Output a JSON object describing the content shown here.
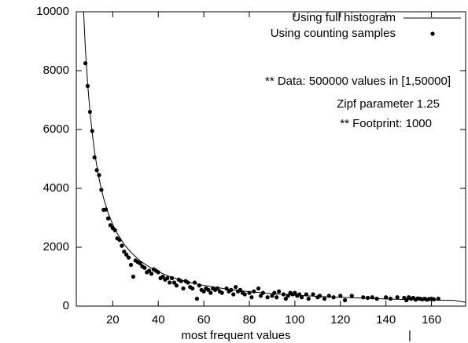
{
  "chart_data": {
    "type": "line",
    "xlabel": "most frequent values",
    "annotations": [
      "** Data: 500000 values in [1,50000]",
      "Zipf parameter 1.25",
      "** Footprint: 1000",
      "|"
    ],
    "xlim": [
      4,
      175
    ],
    "xticks": [
      20,
      40,
      60,
      80,
      100,
      120,
      140,
      160
    ],
    "ylim": [
      0,
      10000
    ],
    "yticks": [
      0,
      2000,
      4000,
      6000,
      8000,
      10000
    ],
    "legend": "top-right",
    "series": [
      {
        "name": "Using full histogram",
        "type": "line",
        "color": "#000000",
        "x": [
          7,
          8,
          9,
          10,
          11,
          12,
          13,
          14,
          15,
          16,
          18,
          20,
          22,
          25,
          28,
          32,
          36,
          40,
          45,
          50,
          55,
          60,
          70,
          80,
          90,
          100,
          110,
          120,
          130,
          140,
          150,
          160,
          165,
          170,
          175
        ],
        "values": [
          10305,
          8726,
          7528,
          6601,
          5860,
          5256,
          4758,
          4337,
          3976,
          3668,
          3164,
          2775,
          2466,
          2100,
          1823,
          1542,
          1331,
          1167,
          1006,
          882,
          784,
          703,
          580,
          490,
          424,
          371,
          330,
          296,
          268,
          244,
          224,
          207,
          199,
          192,
          130
        ]
      },
      {
        "name": "Using counting samples",
        "type": "points",
        "color": "#000000",
        "x": [
          8,
          9,
          10,
          11,
          12,
          13,
          14,
          15,
          16,
          17,
          18,
          19,
          20,
          21,
          22,
          23,
          24,
          25,
          26,
          27,
          28,
          29,
          30,
          31,
          32,
          33,
          34,
          35,
          36,
          37,
          38,
          39,
          40,
          41,
          42,
          43,
          44,
          45,
          46,
          47,
          48,
          49,
          50,
          51,
          52,
          53,
          54,
          55,
          56,
          57,
          58,
          59,
          60,
          61,
          62,
          63,
          64,
          65,
          66,
          67,
          68,
          70,
          71,
          72,
          73,
          74,
          75,
          76,
          77,
          78,
          80,
          81,
          82,
          84,
          85,
          86,
          88,
          90,
          91,
          92,
          93,
          95,
          96,
          97,
          98,
          99,
          100,
          101,
          102,
          103,
          105,
          106,
          108,
          110,
          111,
          113,
          115,
          117,
          120,
          122,
          125,
          130,
          132,
          134,
          136,
          140,
          142,
          145,
          148,
          149,
          150,
          151,
          152,
          153,
          154,
          155,
          156,
          157,
          158,
          159,
          160,
          161,
          163
        ],
        "values": [
          8250,
          7480,
          6600,
          5950,
          5050,
          4620,
          4450,
          3950,
          3270,
          3280,
          2980,
          2750,
          2650,
          2580,
          2300,
          2250,
          2050,
          1850,
          1750,
          1650,
          1400,
          1000,
          1550,
          1500,
          1450,
          1350,
          1300,
          1150,
          1200,
          1100,
          1250,
          1200,
          1150,
          950,
          1000,
          900,
          950,
          800,
          950,
          800,
          700,
          900,
          850,
          600,
          850,
          800,
          650,
          600,
          800,
          250,
          700,
          550,
          500,
          600,
          550,
          450,
          600,
          550,
          600,
          500,
          450,
          600,
          500,
          550,
          400,
          650,
          500,
          550,
          450,
          400,
          450,
          300,
          500,
          600,
          350,
          450,
          300,
          350,
          450,
          300,
          500,
          400,
          250,
          350,
          450,
          400,
          450,
          350,
          400,
          300,
          400,
          250,
          400,
          300,
          350,
          250,
          350,
          300,
          350,
          200,
          350,
          300,
          280,
          300,
          250,
          300,
          250,
          300,
          280,
          200,
          300,
          250,
          280,
          220,
          260,
          250,
          230,
          250,
          220,
          240,
          250,
          230,
          250
        ]
      }
    ]
  }
}
